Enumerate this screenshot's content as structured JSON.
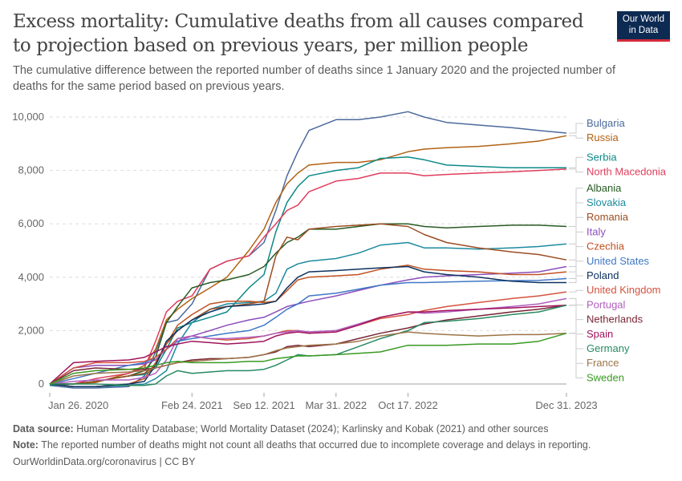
{
  "header": {
    "title": "Excess mortality: Cumulative deaths from all causes compared to projection based on previous years, per million people",
    "subtitle": "The cumulative difference between the reported number of deaths since 1 January 2020 and the projected number of deaths for the same period based on previous years.",
    "logo_line1": "Our World",
    "logo_line2": "in Data"
  },
  "footer": {
    "source_label": "Data source:",
    "source_text": " Human Mortality Database; World Mortality Dataset (2024); Karlinsky and Kobak (2021) and other sources",
    "note_label": "Note:",
    "note_text": " The reported number of deaths might not count all deaths that occurred due to incomplete coverage and delays in reporting.",
    "credit": "OurWorldinData.org/coronavirus | CC BY"
  },
  "chart_data": {
    "type": "line",
    "title": "Excess mortality: Cumulative deaths from all causes compared to projection based on previous years, per million people",
    "xlabel": "",
    "ylabel": "",
    "ylim": [
      -400,
      10000
    ],
    "xlim": [
      "2020-01-26",
      "2023-12-31"
    ],
    "grid": true,
    "legend_position": "right",
    "y_ticks": [
      0,
      2000,
      4000,
      6000,
      8000,
      10000
    ],
    "y_tick_labels": [
      "0",
      "2,000",
      "4,000",
      "6,000",
      "8,000",
      "10,000"
    ],
    "x_ticks": [
      "2020-01-26",
      "2021-02-24",
      "2021-09-12",
      "2022-03-31",
      "2022-10-17",
      "2023-12-31"
    ],
    "x_tick_labels": [
      "Jan 26, 2020",
      "Feb 24, 2021",
      "Sep 12, 2021",
      "Mar 31, 2022",
      "Oct 17, 2022",
      "Dec 31, 2023"
    ],
    "x": [
      "2020-01-26",
      "2020-04-01",
      "2020-06-01",
      "2020-09-01",
      "2020-10-15",
      "2020-11-15",
      "2020-12-15",
      "2021-01-15",
      "2021-02-24",
      "2021-04-15",
      "2021-06-01",
      "2021-08-01",
      "2021-09-12",
      "2021-10-15",
      "2021-11-15",
      "2021-12-15",
      "2022-01-15",
      "2022-03-31",
      "2022-06-01",
      "2022-08-01",
      "2022-10-17",
      "2022-12-01",
      "2023-02-01",
      "2023-05-01",
      "2023-08-01",
      "2023-10-15",
      "2023-12-31"
    ],
    "series": [
      {
        "name": "Bulgaria",
        "color": "#4c6a9c",
        "values": [
          -50,
          -150,
          -150,
          -100,
          300,
          1200,
          2300,
          2400,
          3000,
          4300,
          4600,
          4800,
          5300,
          6500,
          7800,
          8700,
          9500,
          9900,
          9900,
          10000,
          10200,
          10000,
          9800,
          9700,
          9600,
          9500,
          9400
        ]
      },
      {
        "name": "Russia",
        "color": "#b16214",
        "values": [
          0,
          0,
          50,
          400,
          700,
          1300,
          2400,
          2800,
          3200,
          3600,
          4000,
          5000,
          5800,
          6800,
          7500,
          7900,
          8200,
          8300,
          8300,
          8400,
          8700,
          8800,
          8850,
          8900,
          9000,
          9100,
          9300
        ]
      },
      {
        "name": "Serbia",
        "color": "#0d8989",
        "values": [
          -50,
          0,
          100,
          300,
          350,
          600,
          1300,
          2100,
          2300,
          2500,
          2700,
          3600,
          4100,
          5700,
          6800,
          7400,
          7800,
          8000,
          8100,
          8450,
          8500,
          8400,
          8200,
          8150,
          8100,
          8100,
          8100
        ]
      },
      {
        "name": "North Macedonia",
        "color": "#e03d5c",
        "values": [
          0,
          0,
          200,
          400,
          600,
          1600,
          2700,
          3100,
          3300,
          4300,
          4600,
          4800,
          5500,
          6000,
          6500,
          6700,
          7200,
          7600,
          7700,
          7900,
          7900,
          7800,
          7850,
          7900,
          7950,
          8000,
          8050
        ]
      },
      {
        "name": "Albania",
        "color": "#285b24",
        "values": [
          0,
          0,
          100,
          300,
          500,
          1000,
          2300,
          2900,
          3600,
          3800,
          3900,
          4100,
          4400,
          4900,
          5300,
          5500,
          5800,
          5800,
          5900,
          6000,
          6000,
          5900,
          5850,
          5900,
          5950,
          5950,
          5900
        ]
      },
      {
        "name": "Slovakia",
        "color": "#1d8a9e",
        "values": [
          0,
          -100,
          -100,
          -50,
          0,
          200,
          500,
          1500,
          2300,
          2800,
          3000,
          3050,
          3100,
          3400,
          4300,
          4500,
          4600,
          4700,
          4900,
          5200,
          5300,
          5100,
          5100,
          5050,
          5100,
          5150,
          5250
        ]
      },
      {
        "name": "Romania",
        "color": "#9c4d22",
        "values": [
          0,
          0,
          100,
          300,
          400,
          700,
          1500,
          2000,
          2400,
          2800,
          2900,
          3000,
          3100,
          4800,
          5500,
          5400,
          5800,
          5900,
          5950,
          6000,
          5900,
          5600,
          5300,
          5100,
          4950,
          4850,
          4650
        ]
      },
      {
        "name": "Italy",
        "color": "#8c4ebd",
        "values": [
          0,
          600,
          700,
          700,
          750,
          900,
          1300,
          1600,
          1800,
          2000,
          2200,
          2400,
          2500,
          2700,
          2900,
          3000,
          3100,
          3300,
          3500,
          3700,
          3900,
          4000,
          4050,
          4100,
          4150,
          4200,
          4400
        ]
      },
      {
        "name": "Czechia",
        "color": "#c15121",
        "values": [
          0,
          -100,
          -100,
          0,
          200,
          800,
          1500,
          2200,
          2600,
          3000,
          3100,
          3100,
          3050,
          3100,
          3500,
          3900,
          4000,
          4050,
          4100,
          4300,
          4450,
          4300,
          4250,
          4200,
          4100,
          4100,
          4200
        ]
      },
      {
        "name": "United States",
        "color": "#3f77c6",
        "values": [
          0,
          200,
          400,
          700,
          800,
          1000,
          1300,
          1600,
          1700,
          1800,
          1900,
          2000,
          2200,
          2500,
          2800,
          3000,
          3300,
          3400,
          3550,
          3700,
          3800,
          3800,
          3820,
          3850,
          3870,
          3880,
          3950
        ]
      },
      {
        "name": "Poland",
        "color": "#0e3260",
        "values": [
          0,
          -100,
          -100,
          0,
          100,
          700,
          1600,
          2000,
          2400,
          2700,
          2900,
          2950,
          3000,
          3100,
          3600,
          4000,
          4200,
          4250,
          4300,
          4350,
          4400,
          4200,
          4100,
          4000,
          3850,
          3800,
          3800
        ]
      },
      {
        "name": "United Kingdom",
        "color": "#d4523e",
        "values": [
          0,
          600,
          800,
          800,
          850,
          1000,
          1300,
          1700,
          1800,
          1700,
          1650,
          1700,
          1800,
          1900,
          2000,
          2000,
          1950,
          2000,
          2200,
          2450,
          2600,
          2750,
          2900,
          3050,
          3200,
          3300,
          3450
        ]
      },
      {
        "name": "Portugal",
        "color": "#b15ebe",
        "values": [
          0,
          100,
          150,
          150,
          250,
          400,
          900,
          1700,
          1800,
          1700,
          1700,
          1750,
          1800,
          1900,
          1950,
          2000,
          1950,
          2000,
          2250,
          2500,
          2700,
          2650,
          2700,
          2800,
          2900,
          3000,
          3200
        ]
      },
      {
        "name": "Netherlands",
        "color": "#7a2636",
        "values": [
          0,
          500,
          600,
          550,
          550,
          600,
          700,
          800,
          900,
          950,
          950,
          1000,
          1100,
          1200,
          1400,
          1450,
          1400,
          1500,
          1700,
          1900,
          2100,
          2250,
          2400,
          2550,
          2700,
          2800,
          2950
        ]
      },
      {
        "name": "Spain",
        "color": "#a0135b",
        "values": [
          0,
          800,
          850,
          900,
          1000,
          1200,
          1400,
          1500,
          1600,
          1550,
          1500,
          1550,
          1600,
          1800,
          1900,
          1950,
          1900,
          1950,
          2200,
          2500,
          2700,
          2700,
          2750,
          2800,
          2850,
          2900,
          2950
        ]
      },
      {
        "name": "Germany",
        "color": "#288a63",
        "values": [
          0,
          0,
          0,
          -50,
          -50,
          0,
          300,
          500,
          400,
          450,
          500,
          500,
          550,
          700,
          900,
          1100,
          1050,
          1100,
          1400,
          1700,
          2000,
          2300,
          2350,
          2450,
          2600,
          2700,
          2950
        ]
      },
      {
        "name": "France",
        "color": "#9c7448",
        "values": [
          0,
          300,
          400,
          450,
          500,
          600,
          700,
          800,
          850,
          900,
          950,
          1000,
          1100,
          1250,
          1350,
          1400,
          1450,
          1500,
          1600,
          1800,
          1950,
          1900,
          1850,
          1800,
          1850,
          1850,
          1900
        ]
      },
      {
        "name": "Sweden",
        "color": "#389a22",
        "values": [
          0,
          400,
          500,
          550,
          600,
          700,
          800,
          850,
          800,
          800,
          800,
          850,
          850,
          950,
          1000,
          1050,
          1050,
          1100,
          1150,
          1200,
          1450,
          1450,
          1450,
          1500,
          1500,
          1600,
          1900
        ]
      }
    ]
  }
}
